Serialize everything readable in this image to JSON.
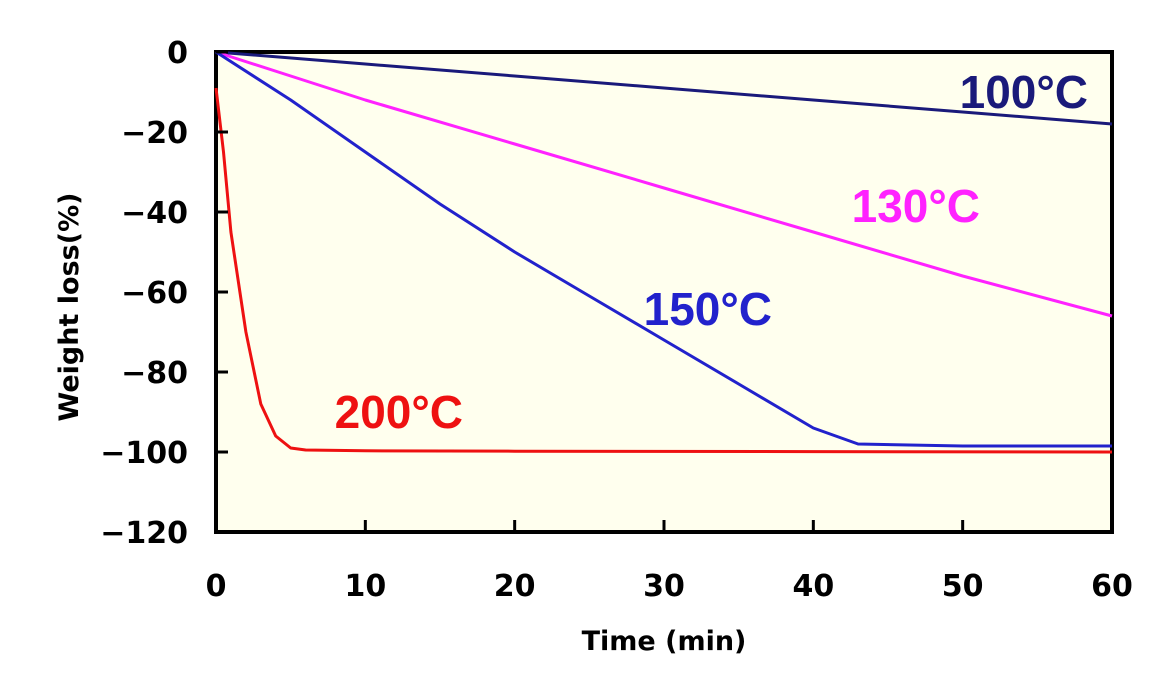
{
  "chart_data": {
    "type": "line",
    "title": "",
    "xlabel": "Time (min)",
    "ylabel": "Weight loss(%)",
    "xlim": [
      0,
      60
    ],
    "ylim": [
      -120,
      0
    ],
    "x_ticks": [
      0,
      10,
      20,
      30,
      40,
      50,
      60
    ],
    "y_ticks": [
      0,
      -20,
      -40,
      -60,
      -80,
      -100,
      -120
    ],
    "x_tick_labels": [
      "0",
      "10",
      "20",
      "30",
      "40",
      "50",
      "60"
    ],
    "y_tick_labels": [
      "0",
      "−20",
      "−40",
      "−60",
      "−80",
      "−100",
      "−120"
    ],
    "plot_background": "#ffffee",
    "grid": false,
    "legend": "none (series labeled inline)",
    "series": [
      {
        "name": "100°C",
        "color": "#1a1a7a",
        "points": [
          [
            0,
            0
          ],
          [
            10,
            -3
          ],
          [
            20,
            -6
          ],
          [
            30,
            -9
          ],
          [
            40,
            -12
          ],
          [
            50,
            -15
          ],
          [
            60,
            -18
          ]
        ]
      },
      {
        "name": "130°C",
        "color": "#ff22ff",
        "points": [
          [
            0,
            0
          ],
          [
            5,
            -6
          ],
          [
            10,
            -12
          ],
          [
            20,
            -23
          ],
          [
            30,
            -34
          ],
          [
            40,
            -45
          ],
          [
            50,
            -56
          ],
          [
            60,
            -66
          ]
        ]
      },
      {
        "name": "150°C",
        "color": "#2222cc",
        "points": [
          [
            0,
            0
          ],
          [
            5,
            -12
          ],
          [
            10,
            -25
          ],
          [
            15,
            -38
          ],
          [
            20,
            -50
          ],
          [
            25,
            -61
          ],
          [
            30,
            -72
          ],
          [
            35,
            -83
          ],
          [
            40,
            -94
          ],
          [
            43,
            -98
          ],
          [
            50,
            -98.5
          ],
          [
            60,
            -98.5
          ]
        ]
      },
      {
        "name": "200°C",
        "color": "#ee1111",
        "points": [
          [
            0,
            -9
          ],
          [
            0.5,
            -25
          ],
          [
            1,
            -45
          ],
          [
            2,
            -70
          ],
          [
            3,
            -88
          ],
          [
            4,
            -96
          ],
          [
            5,
            -99
          ],
          [
            6,
            -99.5
          ],
          [
            10,
            -99.7
          ],
          [
            20,
            -99.8
          ],
          [
            40,
            -99.9
          ],
          [
            60,
            -100
          ]
        ]
      }
    ]
  }
}
